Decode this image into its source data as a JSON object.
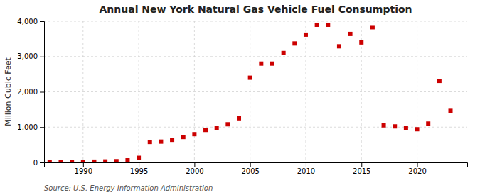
{
  "chart_data": {
    "type": "scatter",
    "title": "Annual New York Natural Gas Vehicle Fuel Consumption",
    "ylabel": "Million Cubic Feet",
    "annotation": "Source: U.S. Energy Information Administration",
    "x": [
      1987,
      1988,
      1989,
      1990,
      1991,
      1992,
      1993,
      1994,
      1995,
      1996,
      1997,
      1998,
      1999,
      2000,
      2001,
      2002,
      2003,
      2004,
      2005,
      2006,
      2007,
      2008,
      2009,
      2010,
      2011,
      2012,
      2013,
      2014,
      2015,
      2016,
      2017,
      2018,
      2019,
      2020,
      2021,
      2022,
      2023
    ],
    "values": [
      5,
      10,
      12,
      18,
      22,
      28,
      35,
      60,
      130,
      580,
      590,
      640,
      720,
      800,
      920,
      970,
      1080,
      1250,
      2400,
      2800,
      2800,
      3100,
      3370,
      3620,
      3900,
      3900,
      3290,
      3640,
      3400,
      3830,
      1050,
      1020,
      970,
      940,
      1100,
      2310,
      1460
    ],
    "color": "#cc0000",
    "marker": "square",
    "xlim": [
      1986.5,
      2024.5
    ],
    "xticks": [
      1990,
      1995,
      2000,
      2005,
      2010,
      2015,
      2020
    ],
    "ylim": [
      0,
      4000
    ],
    "yticks": [
      0,
      {
        "value": 1000,
        "label": "1,000"
      },
      {
        "value": 2000,
        "label": "2,000"
      },
      {
        "value": 3000,
        "label": "3,000"
      },
      {
        "value": 4000,
        "label": "4,000"
      }
    ],
    "grid": true
  }
}
